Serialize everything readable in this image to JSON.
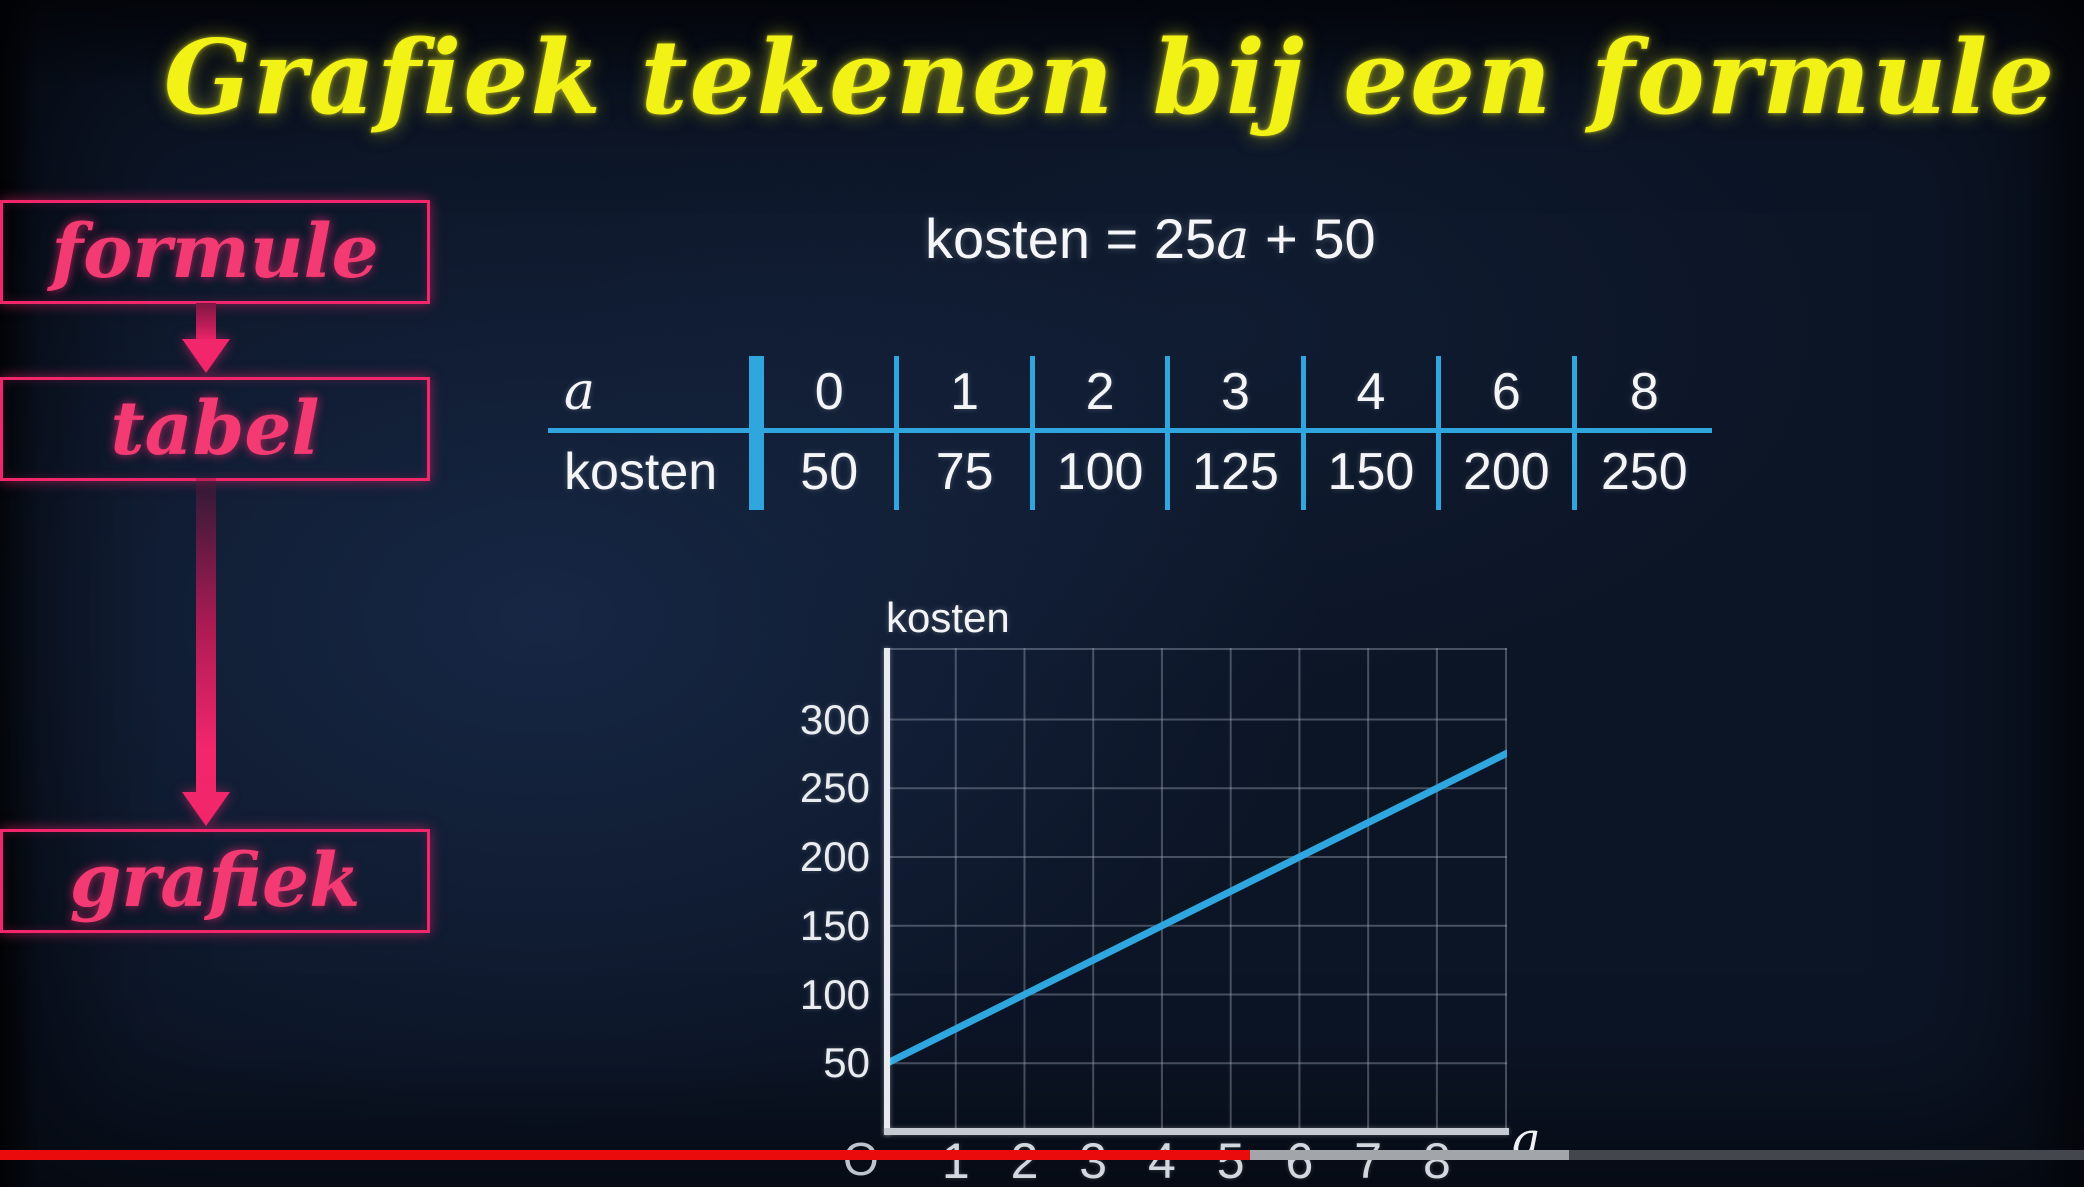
{
  "video_title": "Grafiek tekenen bij een formule",
  "flowchart": {
    "items": [
      {
        "label": "formule"
      },
      {
        "label": "tabel"
      },
      {
        "label": "grafiek"
      }
    ]
  },
  "formula": {
    "text": "kosten = 25a + 50",
    "prefix": "kosten = 25",
    "variable": "a",
    "suffix": " + 50"
  },
  "table": {
    "rows": [
      {
        "label": "a",
        "italic": true,
        "values": [
          "0",
          "1",
          "2",
          "3",
          "4",
          "6",
          "8"
        ]
      },
      {
        "label": "kosten",
        "italic": false,
        "values": [
          "50",
          "75",
          "100",
          "125",
          "150",
          "200",
          "250"
        ]
      }
    ]
  },
  "chart_data": {
    "type": "line",
    "title": "kosten",
    "xlabel": "a",
    "ylabel": "kosten",
    "origin_label": "O",
    "formula": "kosten = 25a + 50",
    "slope": 25,
    "intercept": 50,
    "x": [
      0,
      1,
      2,
      3,
      4,
      6,
      8
    ],
    "y": [
      50,
      75,
      100,
      125,
      150,
      200,
      250
    ],
    "xlim": [
      0,
      9.02
    ],
    "ylim": [
      0,
      352
    ],
    "xticks": [
      1,
      2,
      3,
      4,
      5,
      6,
      7,
      8
    ],
    "yticks": [
      50,
      100,
      150,
      200,
      250,
      300
    ],
    "grid": true,
    "legend_position": "none",
    "line_color": "#2fa7de"
  },
  "player": {
    "progress_played_percent": 60,
    "progress_buffered_percent": 75.3
  },
  "colors": {
    "accent_blue": "#2fa7de",
    "neon_pink": "#f2266b",
    "title_yellow": "#f2f216",
    "progress_red": "#ea0c0c",
    "background_navy": "#0c1526",
    "grid_gray": "#7e8899",
    "text_white": "#f3f5f8"
  }
}
